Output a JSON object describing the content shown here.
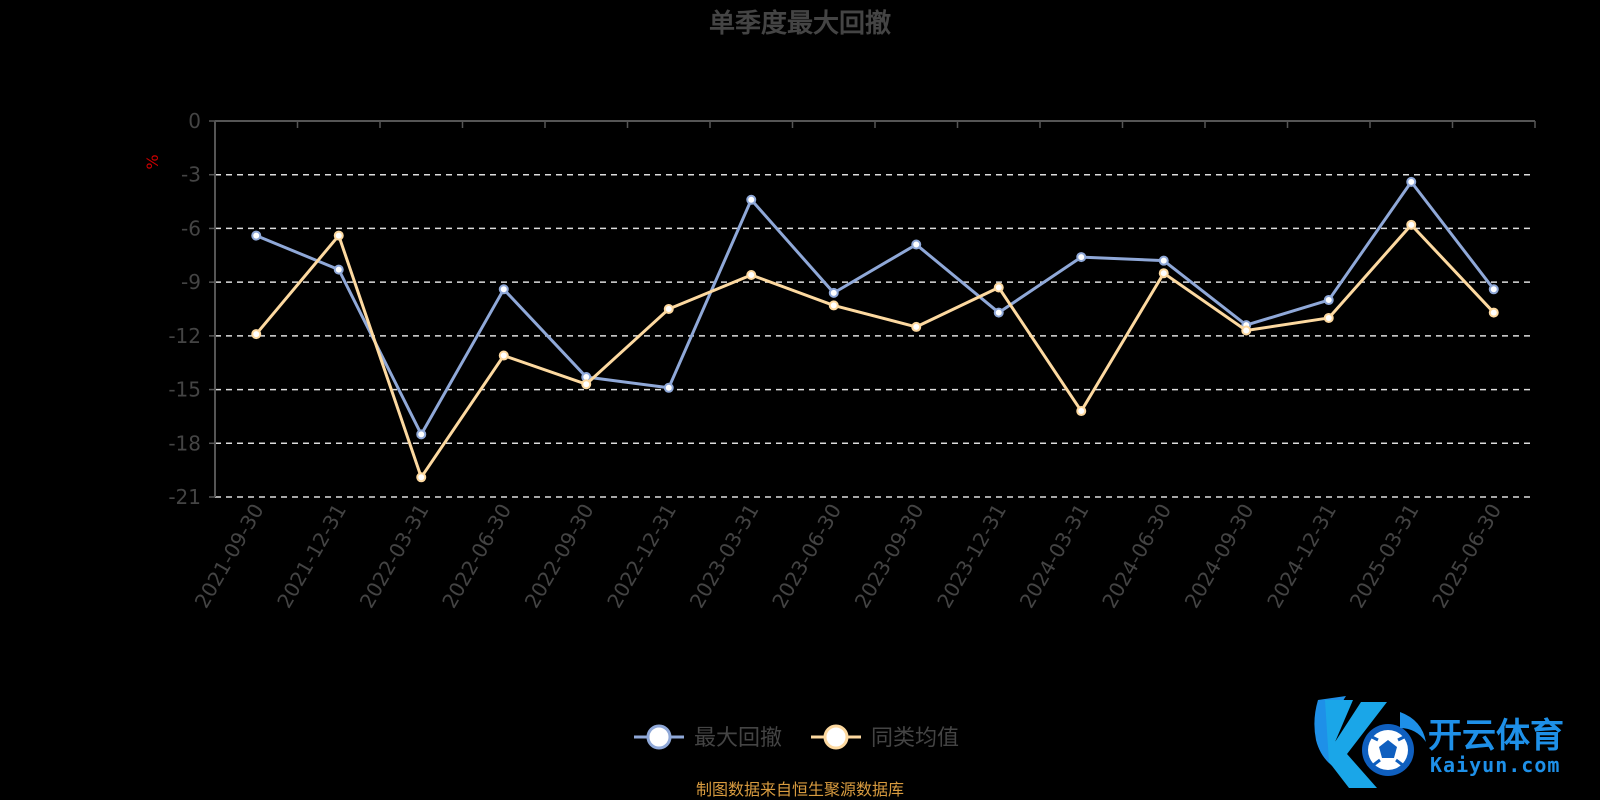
{
  "chart_data": {
    "type": "line",
    "title": "单季度最大回撤",
    "ylabel": "%",
    "ylim": [
      -21,
      0
    ],
    "yticks": [
      0,
      -3,
      -6,
      -9,
      -12,
      -15,
      -18,
      -21
    ],
    "grid": true,
    "legend_position": "bottom",
    "categories": [
      "2021-09-30",
      "2021-12-31",
      "2022-03-31",
      "2022-06-30",
      "2022-09-30",
      "2022-12-31",
      "2023-03-31",
      "2023-06-30",
      "2023-09-30",
      "2023-12-31",
      "2024-03-31",
      "2024-06-30",
      "2024-09-30",
      "2024-12-31",
      "2025-03-31",
      "2025-06-30"
    ],
    "series": [
      {
        "name": "最大回撤",
        "color": "#8fa8d8",
        "values": [
          -6.4,
          -8.3,
          -17.5,
          -9.4,
          -14.3,
          -14.9,
          -4.4,
          -9.6,
          -6.9,
          -10.7,
          -7.6,
          -7.8,
          -11.4,
          -10.0,
          -3.4,
          -9.4
        ]
      },
      {
        "name": "同类均值",
        "color": "#fdd9a0",
        "values": [
          -11.9,
          -6.4,
          -19.9,
          -13.1,
          -14.7,
          -10.5,
          -8.6,
          -10.3,
          -11.5,
          -9.3,
          -16.2,
          -8.5,
          -11.7,
          -11.0,
          -5.8,
          -10.7
        ]
      }
    ],
    "source": "制图数据来自恒生聚源数据库"
  },
  "watermark": {
    "cn": "开云体育",
    "en": "Kaiyun.com"
  },
  "colors": {
    "background": "#000000",
    "grid": "#dddddd",
    "axis": "#555555",
    "text": "#444444",
    "unit": "#cc0000",
    "source": "#d89b3f",
    "logo": "#1e90e8"
  }
}
